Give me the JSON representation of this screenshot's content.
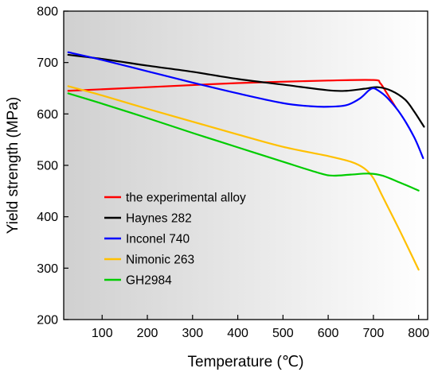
{
  "chart_data": {
    "type": "line",
    "xlabel": "Temperature (℃)",
    "ylabel": "Yield strength (MPa)",
    "xlim": [
      15,
      820
    ],
    "ylim": [
      200,
      800
    ],
    "xticks": [
      100,
      200,
      300,
      400,
      500,
      600,
      700,
      800
    ],
    "yticks": [
      200,
      300,
      400,
      500,
      600,
      700,
      800
    ],
    "grid": false,
    "legend_position": "lower-left",
    "series": [
      {
        "name": "the experimental alloy",
        "color": "#ff0000",
        "points": [
          [
            25,
            645
          ],
          [
            200,
            652
          ],
          [
            400,
            660
          ],
          [
            600,
            665
          ],
          [
            700,
            666
          ],
          [
            715,
            660
          ],
          [
            730,
            640
          ],
          [
            750,
            612
          ]
        ]
      },
      {
        "name": "Haynes 282",
        "color": "#000000",
        "points": [
          [
            25,
            715
          ],
          [
            100,
            707
          ],
          [
            200,
            694
          ],
          [
            300,
            682
          ],
          [
            400,
            668
          ],
          [
            500,
            657
          ],
          [
            600,
            646
          ],
          [
            640,
            645
          ],
          [
            680,
            649
          ],
          [
            710,
            652
          ],
          [
            740,
            645
          ],
          [
            770,
            628
          ],
          [
            790,
            605
          ],
          [
            812,
            575
          ]
        ]
      },
      {
        "name": "Inconel 740",
        "color": "#0000ff",
        "points": [
          [
            25,
            720
          ],
          [
            100,
            705
          ],
          [
            200,
            683
          ],
          [
            300,
            661
          ],
          [
            400,
            640
          ],
          [
            500,
            621
          ],
          [
            560,
            615
          ],
          [
            600,
            614
          ],
          [
            640,
            617
          ],
          [
            670,
            630
          ],
          [
            690,
            646
          ],
          [
            700,
            650
          ],
          [
            710,
            646
          ],
          [
            730,
            632
          ],
          [
            760,
            600
          ],
          [
            790,
            555
          ],
          [
            810,
            514
          ]
        ]
      },
      {
        "name": "Nimonic 263",
        "color": "#ffc000",
        "points": [
          [
            25,
            654
          ],
          [
            100,
            636
          ],
          [
            200,
            610
          ],
          [
            300,
            585
          ],
          [
            400,
            560
          ],
          [
            500,
            536
          ],
          [
            600,
            518
          ],
          [
            650,
            507
          ],
          [
            680,
            494
          ],
          [
            700,
            475
          ],
          [
            720,
            440
          ],
          [
            760,
            370
          ],
          [
            800,
            297
          ]
        ]
      },
      {
        "name": "GH2984",
        "color": "#00cc00",
        "points": [
          [
            25,
            640
          ],
          [
            100,
            620
          ],
          [
            200,
            592
          ],
          [
            300,
            563
          ],
          [
            400,
            535
          ],
          [
            500,
            507
          ],
          [
            580,
            485
          ],
          [
            610,
            480
          ],
          [
            650,
            482
          ],
          [
            690,
            484
          ],
          [
            720,
            480
          ],
          [
            760,
            466
          ],
          [
            800,
            451
          ]
        ]
      }
    ]
  }
}
